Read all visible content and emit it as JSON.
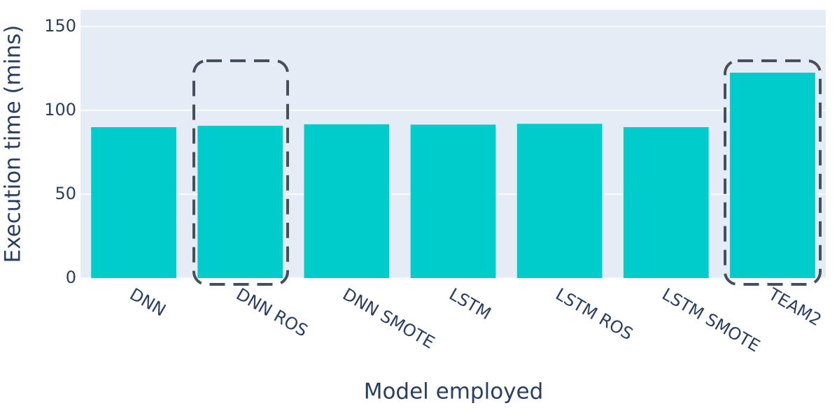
{
  "chart_data": {
    "type": "bar",
    "x_label": "Model employed",
    "y_label": "Execution time (mins)",
    "categories": [
      "DNN",
      "DNN ROS",
      "DNN SMOTE",
      "LSTM",
      "LSTM ROS",
      "LSTM SMOTE",
      "TEAM2"
    ],
    "values": [
      90,
      90.8,
      91.7,
      91.5,
      92,
      90,
      122.5
    ],
    "color": "#00cccc",
    "ylim": [
      0,
      160
    ],
    "yticks": [
      0,
      50,
      100,
      150
    ],
    "grid": true
  }
}
